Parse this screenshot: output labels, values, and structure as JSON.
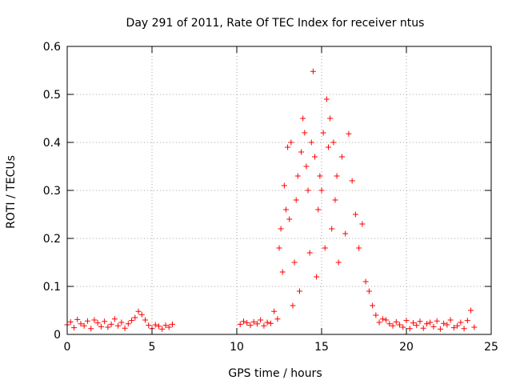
{
  "chart_data": {
    "type": "scatter",
    "title": "Day 291 of 2011, Rate Of TEC Index for receiver ntus",
    "xlabel": "GPS time / hours",
    "ylabel": "ROTI / TECUs",
    "xlim": [
      0,
      25
    ],
    "ylim": [
      0,
      0.6
    ],
    "x_ticks": [
      0,
      5,
      10,
      15,
      20,
      25
    ],
    "y_ticks": [
      0,
      0.1,
      0.2,
      0.3,
      0.4,
      0.5,
      0.6
    ],
    "x_tick_labels": [
      "0",
      "5",
      "10",
      "15",
      "20",
      "25"
    ],
    "y_tick_labels": [
      "0",
      "0.1",
      "0.2",
      "0.3",
      "0.4",
      "0.5",
      "0.6"
    ],
    "grid": true,
    "marker": "plus",
    "marker_color": "#ff0000",
    "series": [
      {
        "points": [
          [
            0.0,
            0.02
          ],
          [
            0.2,
            0.026
          ],
          [
            0.4,
            0.014
          ],
          [
            0.6,
            0.031
          ],
          [
            0.8,
            0.022
          ],
          [
            1.0,
            0.018
          ],
          [
            1.2,
            0.028
          ],
          [
            1.4,
            0.012
          ],
          [
            1.6,
            0.03
          ],
          [
            1.8,
            0.024
          ],
          [
            2.0,
            0.016
          ],
          [
            2.2,
            0.027
          ],
          [
            2.4,
            0.015
          ],
          [
            2.6,
            0.021
          ],
          [
            2.8,
            0.032
          ],
          [
            3.0,
            0.018
          ],
          [
            3.2,
            0.025
          ],
          [
            3.4,
            0.013
          ],
          [
            3.6,
            0.022
          ],
          [
            3.8,
            0.029
          ],
          [
            4.0,
            0.035
          ],
          [
            4.2,
            0.048
          ],
          [
            4.4,
            0.041
          ],
          [
            4.6,
            0.03
          ],
          [
            4.8,
            0.019
          ],
          [
            5.0,
            0.012
          ],
          [
            5.2,
            0.02
          ],
          [
            5.4,
            0.017
          ],
          [
            5.6,
            0.011
          ],
          [
            5.8,
            0.019
          ],
          [
            6.0,
            0.015
          ],
          [
            6.2,
            0.021
          ],
          [
            10.2,
            0.021
          ],
          [
            10.4,
            0.027
          ],
          [
            10.6,
            0.024
          ],
          [
            10.8,
            0.019
          ],
          [
            11.0,
            0.026
          ],
          [
            11.2,
            0.022
          ],
          [
            11.4,
            0.03
          ],
          [
            11.6,
            0.018
          ],
          [
            11.8,
            0.025
          ],
          [
            12.0,
            0.023
          ],
          [
            12.2,
            0.048
          ],
          [
            12.4,
            0.032
          ],
          [
            12.5,
            0.18
          ],
          [
            12.6,
            0.22
          ],
          [
            12.7,
            0.13
          ],
          [
            12.8,
            0.31
          ],
          [
            12.9,
            0.26
          ],
          [
            13.0,
            0.39
          ],
          [
            13.1,
            0.24
          ],
          [
            13.2,
            0.4
          ],
          [
            13.3,
            0.06
          ],
          [
            13.4,
            0.15
          ],
          [
            13.5,
            0.28
          ],
          [
            13.6,
            0.33
          ],
          [
            13.7,
            0.09
          ],
          [
            13.8,
            0.38
          ],
          [
            13.9,
            0.45
          ],
          [
            14.0,
            0.42
          ],
          [
            14.1,
            0.35
          ],
          [
            14.2,
            0.3
          ],
          [
            14.3,
            0.17
          ],
          [
            14.4,
            0.4
          ],
          [
            14.5,
            0.548
          ],
          [
            14.6,
            0.37
          ],
          [
            14.7,
            0.12
          ],
          [
            14.8,
            0.26
          ],
          [
            14.9,
            0.33
          ],
          [
            15.0,
            0.3
          ],
          [
            15.1,
            0.42
          ],
          [
            15.2,
            0.18
          ],
          [
            15.3,
            0.49
          ],
          [
            15.4,
            0.39
          ],
          [
            15.5,
            0.45
          ],
          [
            15.6,
            0.22
          ],
          [
            15.7,
            0.4
          ],
          [
            15.8,
            0.28
          ],
          [
            15.9,
            0.33
          ],
          [
            16.0,
            0.15
          ],
          [
            16.2,
            0.37
          ],
          [
            16.4,
            0.21
          ],
          [
            16.6,
            0.418
          ],
          [
            16.8,
            0.32
          ],
          [
            17.0,
            0.25
          ],
          [
            17.2,
            0.18
          ],
          [
            17.4,
            0.23
          ],
          [
            17.6,
            0.11
          ],
          [
            17.8,
            0.09
          ],
          [
            18.0,
            0.06
          ],
          [
            18.2,
            0.04
          ],
          [
            18.4,
            0.025
          ],
          [
            18.6,
            0.032
          ],
          [
            18.8,
            0.03
          ],
          [
            19.0,
            0.022
          ],
          [
            19.2,
            0.018
          ],
          [
            19.4,
            0.026
          ],
          [
            19.6,
            0.02
          ],
          [
            19.8,
            0.015
          ],
          [
            20.0,
            0.029
          ],
          [
            20.2,
            0.012
          ],
          [
            20.4,
            0.024
          ],
          [
            20.6,
            0.019
          ],
          [
            20.8,
            0.027
          ],
          [
            21.0,
            0.013
          ],
          [
            21.2,
            0.022
          ],
          [
            21.4,
            0.025
          ],
          [
            21.6,
            0.016
          ],
          [
            21.8,
            0.028
          ],
          [
            22.0,
            0.011
          ],
          [
            22.2,
            0.023
          ],
          [
            22.4,
            0.02
          ],
          [
            22.6,
            0.03
          ],
          [
            22.8,
            0.014
          ],
          [
            23.0,
            0.018
          ],
          [
            23.2,
            0.025
          ],
          [
            23.4,
            0.012
          ],
          [
            23.6,
            0.029
          ],
          [
            23.8,
            0.05
          ],
          [
            24.0,
            0.015
          ]
        ]
      }
    ]
  }
}
